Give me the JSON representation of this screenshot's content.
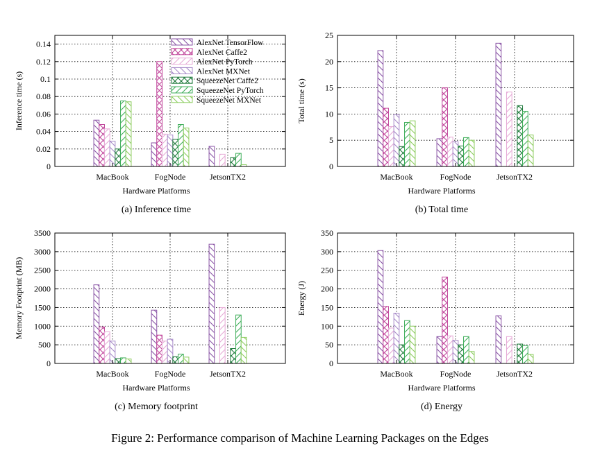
{
  "figure_caption": "Figure 2: Performance comparison of Machine Learning Packages on the Edges",
  "series_styles": [
    {
      "name": "AlexNet TensorFlow",
      "color": "#8a55a6",
      "pattern": "back"
    },
    {
      "name": "AlexNet Caffe2",
      "color": "#c0449a",
      "pattern": "cross"
    },
    {
      "name": "AlexNet PyTorch",
      "color": "#e6a9d6",
      "pattern": "fwd"
    },
    {
      "name": "AlexNet MXNet",
      "color": "#a78ac8",
      "pattern": "back"
    },
    {
      "name": "SqueezeNet Caffe2",
      "color": "#1f7a3c",
      "pattern": "cross"
    },
    {
      "name": "SqueezeNet PyTorch",
      "color": "#3fae5a",
      "pattern": "fwd"
    },
    {
      "name": "SqueezeNet MXNet",
      "color": "#8ccc5e",
      "pattern": "back"
    }
  ],
  "chart_data": [
    {
      "type": "bar",
      "caption": "(a)  Inference time",
      "title": "",
      "xlabel": "Hardware Platforms",
      "ylabel": "Inference time (s)",
      "ylim": [
        0,
        0.15
      ],
      "yticks": [
        0,
        0.02,
        0.04,
        0.06,
        0.08,
        0.1,
        0.12,
        0.14
      ],
      "ytick_labels": [
        "0",
        "0.02",
        "0.04",
        "0.06",
        "0.08",
        "0.1",
        "0.12",
        "0.14"
      ],
      "categories": [
        "MacBook",
        "FogNode",
        "JetsonTX2"
      ],
      "legend": "top-right",
      "grid": true,
      "series": [
        {
          "name": "AlexNet TensorFlow",
          "values": [
            0.053,
            0.027,
            0.023
          ]
        },
        {
          "name": "AlexNet Caffe2",
          "values": [
            0.048,
            0.12,
            0
          ]
        },
        {
          "name": "AlexNet PyTorch",
          "values": [
            0.043,
            0.037,
            0.014
          ]
        },
        {
          "name": "AlexNet MXNet",
          "values": [
            0.029,
            0.036,
            0
          ]
        },
        {
          "name": "SqueezeNet Caffe2",
          "values": [
            0.02,
            0.031,
            0.01
          ]
        },
        {
          "name": "SqueezeNet PyTorch",
          "values": [
            0.075,
            0.048,
            0.015
          ]
        },
        {
          "name": "SqueezeNet MXNet",
          "values": [
            0.074,
            0.044,
            0.002
          ]
        }
      ]
    },
    {
      "type": "bar",
      "caption": "(b)  Total time",
      "title": "",
      "xlabel": "Hardware Platforms",
      "ylabel": "Total time (s)",
      "ylim": [
        0,
        25
      ],
      "yticks": [
        0,
        5,
        10,
        15,
        20,
        25
      ],
      "ytick_labels": [
        "0",
        "5",
        "10",
        "15",
        "20",
        "25"
      ],
      "categories": [
        "MacBook",
        "FogNode",
        "JetsonTX2"
      ],
      "grid": true,
      "series": [
        {
          "name": "AlexNet TensorFlow",
          "values": [
            22.1,
            5.3,
            23.5
          ]
        },
        {
          "name": "AlexNet Caffe2",
          "values": [
            11.1,
            15.0,
            0
          ]
        },
        {
          "name": "AlexNet PyTorch",
          "values": [
            7.6,
            5.6,
            14.2
          ]
        },
        {
          "name": "AlexNet MXNet",
          "values": [
            9.9,
            4.7,
            0
          ]
        },
        {
          "name": "SqueezeNet Caffe2",
          "values": [
            3.8,
            3.9,
            11.6
          ]
        },
        {
          "name": "SqueezeNet PyTorch",
          "values": [
            8.4,
            5.5,
            10.5
          ]
        },
        {
          "name": "SqueezeNet MXNet",
          "values": [
            8.7,
            5.0,
            6.0
          ]
        }
      ]
    },
    {
      "type": "bar",
      "caption": "(c)  Memory footprint",
      "title": "",
      "xlabel": "Hardware Platforms",
      "ylabel": "Memory Footprint (MB)",
      "ylim": [
        0,
        3500
      ],
      "yticks": [
        0,
        500,
        1000,
        1500,
        2000,
        2500,
        3000,
        3500
      ],
      "ytick_labels": [
        "0",
        "500",
        "1000",
        "1500",
        "2000",
        "2500",
        "3000",
        "3500"
      ],
      "categories": [
        "MacBook",
        "FogNode",
        "JetsonTX2"
      ],
      "grid": true,
      "series": [
        {
          "name": "AlexNet TensorFlow",
          "values": [
            2110,
            1430,
            3200
          ]
        },
        {
          "name": "AlexNet Caffe2",
          "values": [
            980,
            760,
            0
          ]
        },
        {
          "name": "AlexNet PyTorch",
          "values": [
            850,
            600,
            1500
          ]
        },
        {
          "name": "AlexNet MXNet",
          "values": [
            600,
            650,
            0
          ]
        },
        {
          "name": "SqueezeNet Caffe2",
          "values": [
            130,
            180,
            400
          ]
        },
        {
          "name": "SqueezeNet PyTorch",
          "values": [
            150,
            250,
            1300
          ]
        },
        {
          "name": "SqueezeNet MXNet",
          "values": [
            120,
            170,
            700
          ]
        }
      ]
    },
    {
      "type": "bar",
      "caption": "(d)  Energy",
      "title": "",
      "xlabel": "Hardware Platforms",
      "ylabel": "Energy (J)",
      "ylim": [
        0,
        350
      ],
      "yticks": [
        0,
        50,
        100,
        150,
        200,
        250,
        300,
        350
      ],
      "ytick_labels": [
        "0",
        "50",
        "100",
        "150",
        "200",
        "250",
        "300",
        "350"
      ],
      "categories": [
        "MacBook",
        "FogNode",
        "JetsonTX2"
      ],
      "grid": true,
      "series": [
        {
          "name": "AlexNet TensorFlow",
          "values": [
            303,
            72,
            128
          ]
        },
        {
          "name": "AlexNet Caffe2",
          "values": [
            153,
            232,
            0
          ]
        },
        {
          "name": "AlexNet PyTorch",
          "values": [
            95,
            74,
            72
          ]
        },
        {
          "name": "AlexNet MXNet",
          "values": [
            135,
            62,
            0
          ]
        },
        {
          "name": "SqueezeNet Caffe2",
          "values": [
            50,
            50,
            52
          ]
        },
        {
          "name": "SqueezeNet PyTorch",
          "values": [
            115,
            72,
            48
          ]
        },
        {
          "name": "SqueezeNet MXNet",
          "values": [
            100,
            32,
            24
          ]
        }
      ]
    }
  ]
}
